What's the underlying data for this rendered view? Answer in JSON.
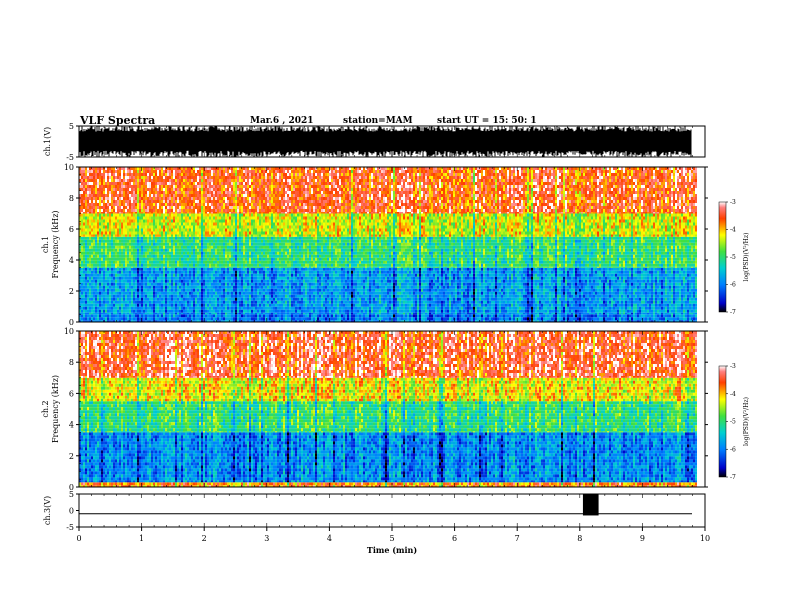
{
  "header": {
    "title": "VLF Spectra",
    "date": "Mar.6 , 2021",
    "station": "station=MAM",
    "start": "start UT = 15: 50: 1"
  },
  "chart_data": [
    {
      "type": "line",
      "panel": "ch1-waveform",
      "ylabel": "ch.1(V)",
      "ylim": [
        -5,
        5
      ],
      "yticks": [
        "5",
        "-5"
      ],
      "xlim": [
        0,
        10
      ],
      "description": "dense broadband waveform filling amplitude range through ~9.85 min"
    },
    {
      "type": "heatmap",
      "panel": "ch1-spectrogram",
      "ylabel_line1": "ch.1",
      "ylabel_line2": "Frequency (kHz)",
      "ylim": [
        0,
        10
      ],
      "yticks": [
        "0",
        "2",
        "4",
        "6",
        "8",
        "10"
      ],
      "xlim": [
        0,
        9.85
      ],
      "colorbar": {
        "label": "log(PSD)(V²/Hz)",
        "range": [
          -7,
          -3
        ],
        "ticks": [
          "-3",
          "-4",
          "-5",
          "-6",
          "-7"
        ]
      },
      "bands_kHz": [
        {
          "from": 0,
          "to": 0.5,
          "level": -6.0
        },
        {
          "from": 0.5,
          "to": 3.5,
          "level": -5.8
        },
        {
          "from": 3.5,
          "to": 5.5,
          "level": -5.0
        },
        {
          "from": 5.5,
          "to": 7.0,
          "level": -4.3
        },
        {
          "from": 7.0,
          "to": 10,
          "level": -3.5
        }
      ]
    },
    {
      "type": "heatmap",
      "panel": "ch2-spectrogram",
      "ylabel_line1": "ch.2",
      "ylabel_line2": "Frequency (kHz)",
      "ylim": [
        0,
        10
      ],
      "yticks": [
        "0",
        "2",
        "4",
        "6",
        "8",
        "10"
      ],
      "xlim": [
        0,
        9.85
      ],
      "colorbar": {
        "label": "log(PSD)(V²/Hz)",
        "range": [
          -7,
          -3
        ],
        "ticks": [
          "-3",
          "-4",
          "-5",
          "-6",
          "-7"
        ]
      },
      "bands_kHz": [
        {
          "from": 0,
          "to": 0.3,
          "level": -3.8
        },
        {
          "from": 0.3,
          "to": 3.5,
          "level": -5.9
        },
        {
          "from": 3.5,
          "to": 5.5,
          "level": -5.0
        },
        {
          "from": 5.5,
          "to": 7.0,
          "level": -4.2
        },
        {
          "from": 7.0,
          "to": 10,
          "level": -3.4
        }
      ]
    },
    {
      "type": "line",
      "panel": "ch3-waveform",
      "ylabel": "ch.3(V)",
      "ylim": [
        -5,
        5
      ],
      "yticks": [
        "5",
        "0",
        "-5"
      ],
      "xlim": [
        0,
        10
      ],
      "baseline": -1,
      "burst": {
        "from": 8.05,
        "to": 8.3
      }
    }
  ],
  "xaxis": {
    "label": "Time (min)",
    "ticks": [
      "0",
      "1",
      "2",
      "3",
      "4",
      "5",
      "6",
      "7",
      "8",
      "9",
      "10"
    ]
  }
}
